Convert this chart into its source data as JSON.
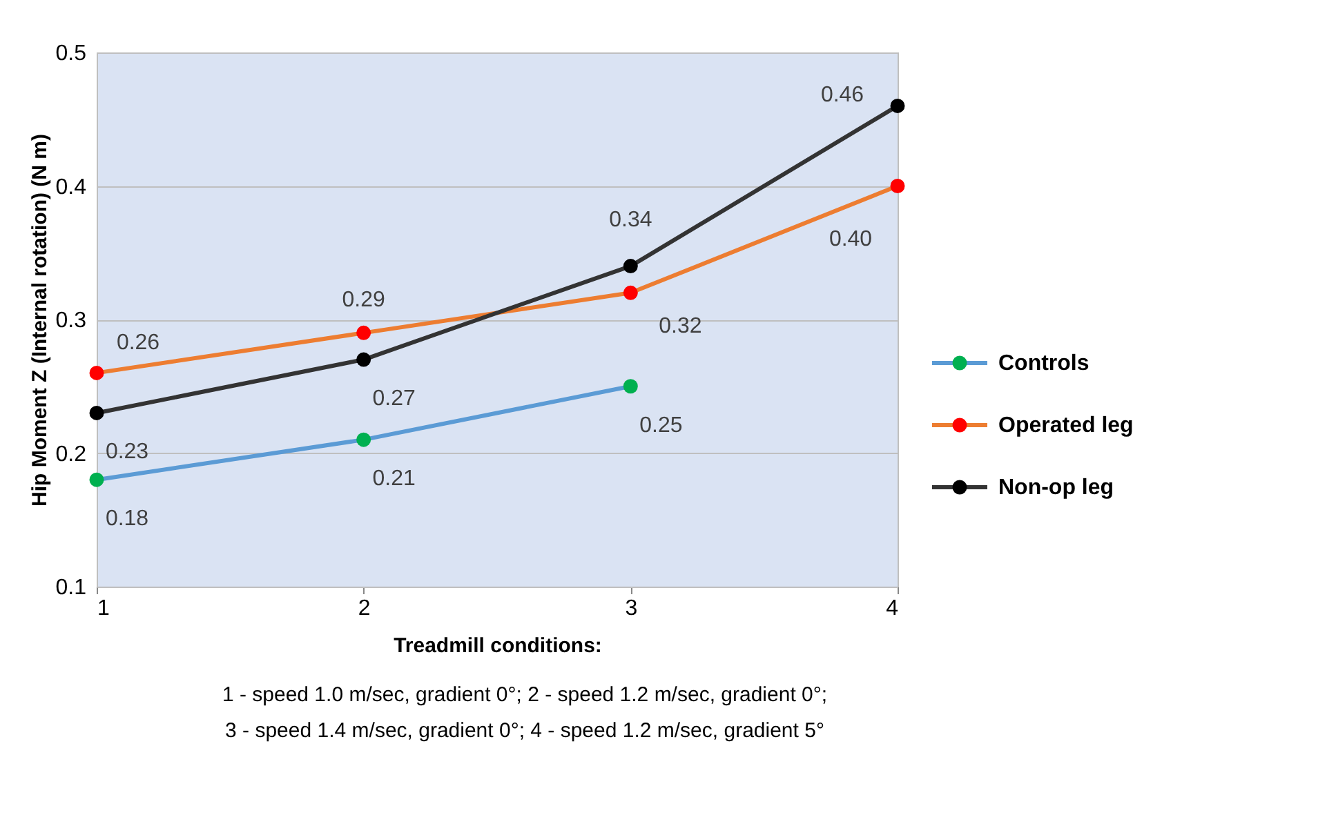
{
  "chart_data": {
    "type": "line",
    "xlabel": "Treadmill conditions:",
    "ylabel": "Hip Moment  Z (Internal rotation) (N m)",
    "x": [
      1,
      2,
      3,
      4
    ],
    "xlim": [
      1,
      4
    ],
    "xticks": [
      1,
      2,
      3,
      4
    ],
    "ylim": [
      0.1,
      0.5
    ],
    "yticks": [
      0.1,
      0.2,
      0.3,
      0.4,
      0.5
    ],
    "grid": "y",
    "legend": "right",
    "marker": "circle",
    "line_style": "solid",
    "series": [
      {
        "name": "Controls",
        "color": "#5b9bd5",
        "colors": [
          "#00b050",
          "#00b050",
          "#00b050",
          null
        ],
        "values": [
          0.18,
          0.21,
          0.25,
          null
        ],
        "value_labels": [
          "0.18",
          "0.21",
          "0.25",
          null
        ]
      },
      {
        "name": "Operated leg",
        "color": "#ed7d31",
        "colors": [
          "#ff0000",
          "#ff0000",
          "#ff0000",
          "#ff0000"
        ],
        "values": [
          0.26,
          0.29,
          0.32,
          0.4
        ],
        "value_labels": [
          "0.26",
          "0.29",
          "0.32",
          "0.40"
        ]
      },
      {
        "name": "Non-op leg",
        "color": "#333333",
        "colors": [
          "#000000",
          "#000000",
          "#000000",
          "#000000"
        ],
        "values": [
          0.23,
          0.27,
          0.34,
          0.46
        ],
        "value_labels": [
          "0.23",
          "0.27",
          "0.34",
          "0.46"
        ]
      }
    ],
    "annotations": [
      "1 - speed 1.0 m/sec, gradient 0°; 2 - speed 1.2 m/sec, gradient 0°;",
      "3 - speed 1.4 m/sec, gradient 0°; 4 - speed 1.2 m/sec, gradient 5°"
    ]
  }
}
